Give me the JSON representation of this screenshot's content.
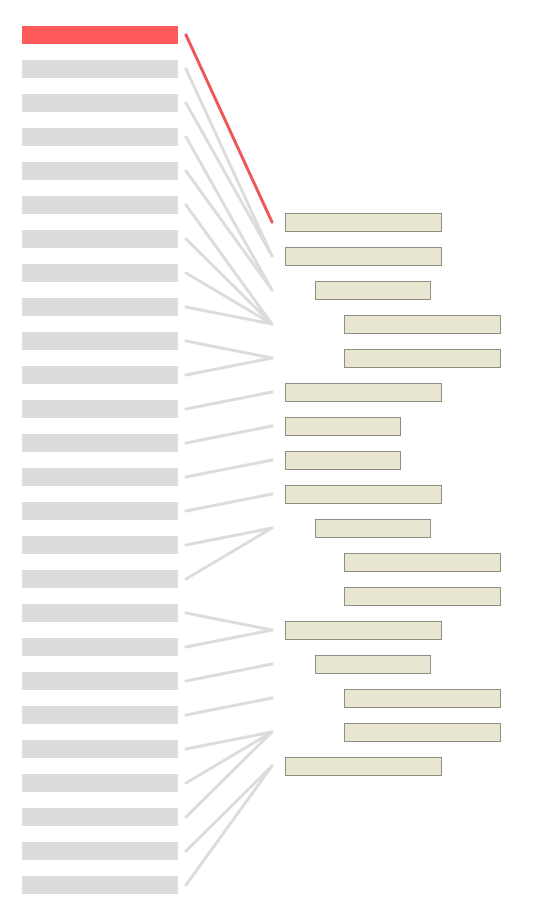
{
  "colors": {
    "left_bar": "#dcdcdc",
    "left_bar_highlight": "#ff5a5a",
    "right_box_fill": "#e8e5d0",
    "right_box_border": "#8e8e84",
    "connector": "#dcdcdc",
    "connector_highlight": "#ee5555"
  },
  "diagram": {
    "left_count": 26,
    "highlighted_left": 0,
    "right_nodes": [
      {
        "depth": 0,
        "width": "wide"
      },
      {
        "depth": 0,
        "width": "wide"
      },
      {
        "depth": 1,
        "width": "wide"
      },
      {
        "depth": 2,
        "width": "wide"
      },
      {
        "depth": 2,
        "width": "wide"
      },
      {
        "depth": 0,
        "width": "wide"
      },
      {
        "depth": 0,
        "width": "narrow"
      },
      {
        "depth": 0,
        "width": "narrow"
      },
      {
        "depth": 0,
        "width": "wide"
      },
      {
        "depth": 1,
        "width": "wide"
      },
      {
        "depth": 2,
        "width": "wide"
      },
      {
        "depth": 2,
        "width": "wide"
      },
      {
        "depth": 0,
        "width": "wide"
      },
      {
        "depth": 1,
        "width": "wide"
      },
      {
        "depth": 2,
        "width": "wide"
      },
      {
        "depth": 2,
        "width": "wide"
      },
      {
        "depth": 0,
        "width": "wide"
      }
    ],
    "links": [
      {
        "from": 0,
        "to": 0
      },
      {
        "from": 1,
        "to": 1
      },
      {
        "from": 2,
        "to": 1
      },
      {
        "from": 3,
        "to": 2
      },
      {
        "from": 4,
        "to": 2
      },
      {
        "from": 5,
        "to": 3
      },
      {
        "from": 6,
        "to": 3
      },
      {
        "from": 7,
        "to": 3
      },
      {
        "from": 8,
        "to": 3
      },
      {
        "from": 9,
        "to": 4
      },
      {
        "from": 10,
        "to": 4
      },
      {
        "from": 11,
        "to": 5
      },
      {
        "from": 12,
        "to": 6
      },
      {
        "from": 13,
        "to": 7
      },
      {
        "from": 14,
        "to": 8
      },
      {
        "from": 15,
        "to": 9
      },
      {
        "from": 16,
        "to": 9
      },
      {
        "from": 17,
        "to": 12
      },
      {
        "from": 18,
        "to": 12
      },
      {
        "from": 19,
        "to": 13
      },
      {
        "from": 20,
        "to": 14
      },
      {
        "from": 21,
        "to": 15
      },
      {
        "from": 22,
        "to": 15
      },
      {
        "from": 23,
        "to": 15
      },
      {
        "from": 24,
        "to": 16
      },
      {
        "from": 25,
        "to": 16
      }
    ]
  }
}
